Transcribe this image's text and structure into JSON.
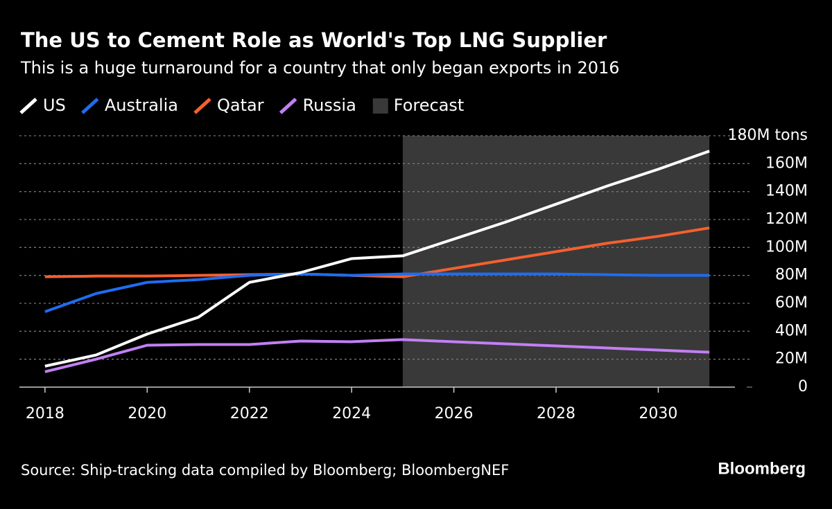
{
  "chart_data": {
    "type": "line",
    "title": "The US to Cement Role as World's Top LNG Supplier",
    "subtitle": "This is a huge turnaround for a country that only began exports in 2016",
    "x": [
      2018,
      2019,
      2020,
      2021,
      2022,
      2023,
      2024,
      2025,
      2026,
      2027,
      2028,
      2029,
      2030,
      2031
    ],
    "series": [
      {
        "name": "US",
        "color": "#ffffff",
        "values": [
          15,
          23,
          38,
          50,
          75,
          82,
          92,
          94,
          106,
          118,
          131,
          144,
          156,
          169
        ]
      },
      {
        "name": "Australia",
        "color": "#1f6cf0",
        "values": [
          54,
          67,
          75,
          77,
          80,
          81,
          80,
          81,
          81,
          81,
          81,
          80.5,
          80,
          80
        ]
      },
      {
        "name": "Qatar",
        "color": "#f4602f",
        "values": [
          79,
          79.5,
          79.5,
          80,
          80.5,
          81,
          80,
          79,
          85,
          91,
          97,
          103,
          108,
          114
        ]
      },
      {
        "name": "Russia",
        "color": "#c27ff5",
        "values": [
          11,
          20,
          30,
          30.5,
          30.5,
          33,
          32.5,
          34,
          32.5,
          31,
          29.5,
          28,
          26.5,
          25
        ]
      }
    ],
    "forecast": {
      "label": "Forecast",
      "xlim": [
        2025,
        2031
      ],
      "color": "#393939"
    },
    "xlim": [
      2017.5,
      2031.5
    ],
    "xticks": [
      2018,
      2020,
      2022,
      2024,
      2026,
      2028,
      2030
    ],
    "ylim": [
      0,
      180
    ],
    "yticks": [
      0,
      {
        "value": 20,
        "label": "20M"
      },
      {
        "value": 40,
        "label": "40M"
      },
      {
        "value": 60,
        "label": "60M"
      },
      {
        "value": 80,
        "label": "80M"
      },
      {
        "value": 100,
        "label": "100M"
      },
      {
        "value": 120,
        "label": "120M"
      },
      {
        "value": 140,
        "label": "140M"
      },
      {
        "value": 160,
        "label": "160M"
      },
      {
        "value": 180,
        "label": "180M tons"
      }
    ],
    "grid": true,
    "source": "Source: Ship-tracking data compiled by Bloomberg; BloombergNEF",
    "brand": "Bloomberg"
  }
}
